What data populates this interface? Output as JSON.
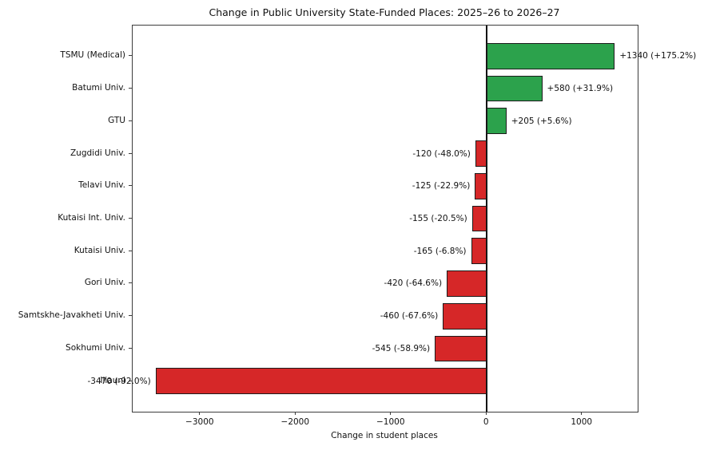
{
  "title": "Change in Public University State-Funded Places: 2025–26 to 2026–27",
  "xlabel": "Change in student places",
  "chart_data": {
    "type": "bar",
    "orientation": "horizontal",
    "title": "Change in Public University State-Funded Places: 2025–26 to 2026–27",
    "xlabel": "Change in student places",
    "ylabel": "",
    "xlim": [
      -3710,
      1580
    ],
    "grid": false,
    "legend": false,
    "zero_line": true,
    "xticks": [
      {
        "value": -3000,
        "label": "−3000"
      },
      {
        "value": -2000,
        "label": "−2000"
      },
      {
        "value": -1000,
        "label": "−1000"
      },
      {
        "value": 0,
        "label": "0"
      },
      {
        "value": 1000,
        "label": "1000"
      }
    ],
    "colors": {
      "positive": "#2ca24c",
      "negative": "#d62728",
      "bar_edge": "#1c1c1c",
      "zero_line": "#111111",
      "axis": "#3c3c3c",
      "text": "#111111"
    },
    "bars": [
      {
        "category": "TSMU (Medical)",
        "value": 1340,
        "percent": 175.2,
        "label": "+1340 (+175.2%)"
      },
      {
        "category": "Batumi Univ.",
        "value": 580,
        "percent": 31.9,
        "label": "+580 (+31.9%)"
      },
      {
        "category": "GTU",
        "value": 205,
        "percent": 5.6,
        "label": "+205 (+5.6%)"
      },
      {
        "category": "Zugdidi Univ.",
        "value": -120,
        "percent": -48.0,
        "label": "-120 (-48.0%)"
      },
      {
        "category": "Telavi Univ.",
        "value": -125,
        "percent": -22.9,
        "label": "-125 (-22.9%)"
      },
      {
        "category": "Kutaisi Int. Univ.",
        "value": -155,
        "percent": -20.5,
        "label": "-155 (-20.5%)"
      },
      {
        "category": "Kutaisi Univ.",
        "value": -165,
        "percent": -6.8,
        "label": "-165 (-6.8%)"
      },
      {
        "category": "Gori Univ.",
        "value": -420,
        "percent": -64.6,
        "label": "-420 (-64.6%)"
      },
      {
        "category": "Samtskhe-Javakheti Univ.",
        "value": -460,
        "percent": -67.6,
        "label": "-460 (-67.6%)"
      },
      {
        "category": "Sokhumi Univ.",
        "value": -545,
        "percent": -58.9,
        "label": "-545 (-58.9%)"
      },
      {
        "category": "Iliauni",
        "value": -3470,
        "percent": -92.0,
        "label": "-3470 (-92.0%)"
      }
    ]
  }
}
